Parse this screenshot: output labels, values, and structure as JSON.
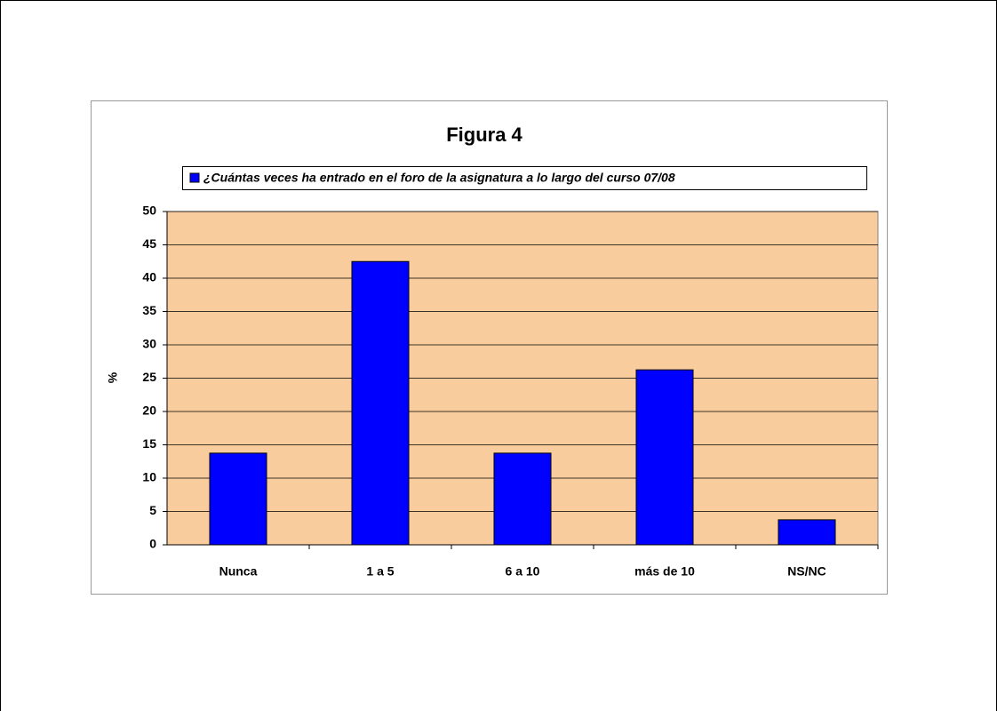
{
  "chart_data": {
    "type": "bar",
    "title": "Figura 4",
    "ylabel": "%",
    "categories": [
      "Nunca",
      "1 a 5",
      "6 a 10",
      "más de 10",
      "NS/NC"
    ],
    "series": [
      {
        "name": "¿Cuántas veces ha entrado en el foro de la asignatura a lo largo del curso 07/08",
        "color": "#0000ff",
        "values": [
          13.75,
          42.5,
          13.75,
          26.25,
          3.75
        ]
      }
    ],
    "ylim": [
      0,
      50
    ],
    "yticks": [
      0,
      5,
      10,
      15,
      20,
      25,
      30,
      35,
      40,
      45,
      50
    ],
    "grid": true,
    "plot_background": "#f9cc9d",
    "legend": "top"
  }
}
